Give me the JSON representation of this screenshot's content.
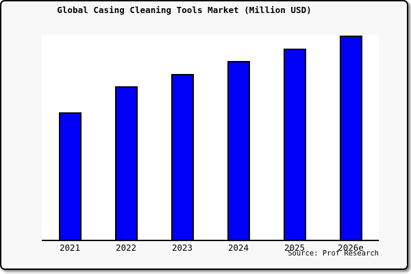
{
  "page": {
    "background_color": "#f8f8f8",
    "frame_border_color": "#000000"
  },
  "chart_data": {
    "type": "bar",
    "title": "Global Casing Cleaning Tools Market (Million USD)",
    "categories": [
      "2021",
      "2022",
      "2023",
      "2024",
      "2025",
      "2026e"
    ],
    "values": [
      62.6,
      75.1,
      81.3,
      87.6,
      93.5,
      100
    ],
    "values_note": "No y-axis or data labels are shown in the chart; values are relative estimates of bar heights indexed to 2026e = 100",
    "xlabel": "",
    "ylabel": "",
    "ylim": [
      0,
      100
    ],
    "grid": false,
    "legend": false,
    "bar_color": "#0000fa",
    "bar_border_color": "#000000",
    "plot_background": "#ffffff",
    "source_label": "Source: Prof Research"
  }
}
